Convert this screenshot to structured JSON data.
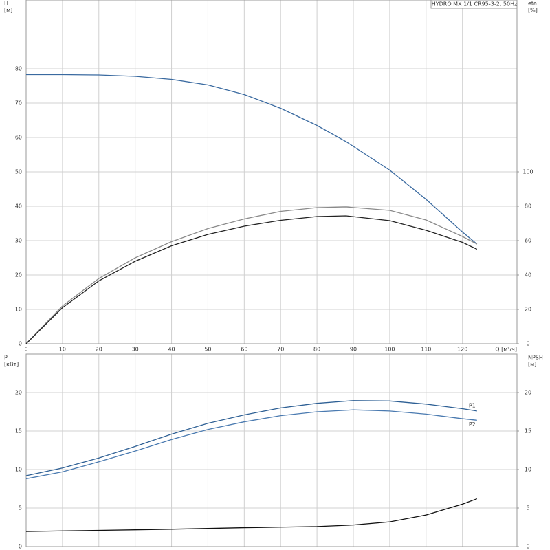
{
  "chart_data": [
    {
      "type": "line",
      "title": "HYDRO MX 1/1 CR95-3-2, 50Hz",
      "ylabel": "H",
      "yunit": "[м]",
      "y2label": "eta",
      "y2unit": "[%]",
      "xlabel": "Q [м³/ч]",
      "xlim": [
        0,
        135
      ],
      "xticks": [
        0,
        10,
        20,
        30,
        40,
        50,
        60,
        70,
        80,
        90,
        100,
        110,
        120
      ],
      "ylim": [
        0,
        100
      ],
      "yticks": [
        0,
        10,
        20,
        30,
        40,
        50,
        60,
        70,
        80
      ],
      "y2lim": [
        0,
        200
      ],
      "y2ticks": [
        0,
        20,
        40,
        60,
        80,
        100
      ],
      "grid": true,
      "x": [
        0,
        10,
        20,
        30,
        40,
        50,
        60,
        70,
        80,
        88,
        100,
        110,
        120,
        124
      ],
      "series": [
        {
          "color": "#3a6aa0",
          "values": [
            78.3,
            78.3,
            78.2,
            77.8,
            76.9,
            75.3,
            72.5,
            68.5,
            63.5,
            58.8,
            50.5,
            42,
            32.5,
            29
          ]
        },
        {
          "color": "#8a8a8a",
          "axis": "y2",
          "values": [
            0,
            22,
            38,
            50,
            59.4,
            67,
            72.6,
            77,
            79.2,
            79.6,
            77.6,
            72,
            62.4,
            58
          ]
        },
        {
          "color": "#222222",
          "axis": "y2",
          "values": [
            0,
            21,
            36.6,
            48,
            57,
            63.6,
            68.4,
            71.8,
            74,
            74.4,
            71.6,
            66,
            59,
            55
          ]
        }
      ]
    },
    {
      "type": "line",
      "ylabel": "P",
      "yunit": "[кВт]",
      "y2label": "NPSH",
      "y2unit": "[м]",
      "xlim": [
        0,
        135
      ],
      "xticks": [
        0,
        10,
        20,
        30,
        40,
        50,
        60,
        70,
        80,
        90,
        100,
        110,
        120
      ],
      "ylim": [
        0,
        25
      ],
      "yticks": [
        0,
        5,
        10,
        15,
        20
      ],
      "y2lim": [
        0,
        25
      ],
      "y2ticks": [
        0,
        5,
        10,
        15,
        20
      ],
      "grid": true,
      "x": [
        0,
        10,
        20,
        30,
        40,
        50,
        60,
        70,
        80,
        90,
        100,
        110,
        120,
        124
      ],
      "series": [
        {
          "name": "P1",
          "color": "#2d5f94",
          "values": [
            9.2,
            10.2,
            11.5,
            13,
            14.6,
            16,
            17.1,
            18,
            18.6,
            18.95,
            18.9,
            18.5,
            17.9,
            17.6
          ]
        },
        {
          "name": "P2",
          "color": "#4a7ab0",
          "values": [
            8.8,
            9.7,
            11,
            12.4,
            13.9,
            15.2,
            16.2,
            17,
            17.5,
            17.75,
            17.6,
            17.2,
            16.6,
            16.4
          ]
        },
        {
          "color": "#111111",
          "axis": "y2",
          "values": [
            1.95,
            2.03,
            2.1,
            2.17,
            2.25,
            2.35,
            2.45,
            2.52,
            2.6,
            2.8,
            3.2,
            4.1,
            5.5,
            6.2
          ]
        }
      ]
    }
  ]
}
